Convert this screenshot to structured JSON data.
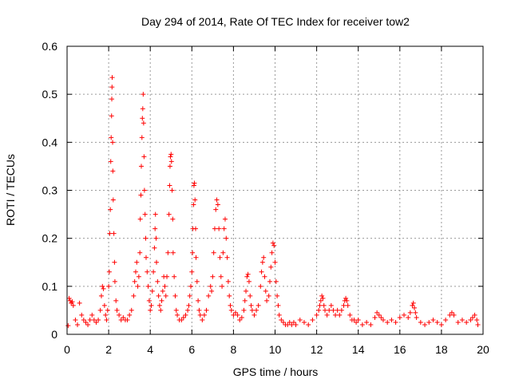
{
  "chart_data": {
    "type": "scatter",
    "title": "Day 294 of 2014, Rate Of TEC Index for receiver tow2",
    "xlabel": "GPS time / hours",
    "ylabel": "ROTI / TECUs",
    "xlim": [
      0,
      20
    ],
    "ylim": [
      0,
      0.6
    ],
    "x_ticks": [
      "0",
      "2",
      "4",
      "6",
      "8",
      "10",
      "12",
      "14",
      "16",
      "18",
      "20"
    ],
    "y_ticks": [
      "0",
      "0.1",
      "0.2",
      "0.3",
      "0.4",
      "0.5",
      "0.6"
    ],
    "grid": true,
    "marker": "+",
    "color": "#ff0000",
    "series": [
      {
        "points": [
          [
            0.05,
            0.018
          ],
          [
            0.1,
            0.075
          ],
          [
            0.15,
            0.07
          ],
          [
            0.2,
            0.065
          ],
          [
            0.25,
            0.068
          ],
          [
            0.3,
            0.06
          ],
          [
            0.4,
            0.03
          ],
          [
            0.5,
            0.02
          ],
          [
            0.6,
            0.065
          ],
          [
            0.7,
            0.04
          ],
          [
            0.8,
            0.03
          ],
          [
            0.9,
            0.025
          ],
          [
            1.0,
            0.02
          ],
          [
            1.1,
            0.03
          ],
          [
            1.2,
            0.04
          ],
          [
            1.3,
            0.03
          ],
          [
            1.4,
            0.025
          ],
          [
            1.5,
            0.03
          ],
          [
            1.6,
            0.05
          ],
          [
            1.65,
            0.08
          ],
          [
            1.7,
            0.1
          ],
          [
            1.75,
            0.095
          ],
          [
            1.8,
            0.06
          ],
          [
            1.85,
            0.04
          ],
          [
            1.9,
            0.03
          ],
          [
            1.95,
            0.05
          ],
          [
            2.0,
            0.1
          ],
          [
            2.03,
            0.13
          ],
          [
            2.05,
            0.21
          ],
          [
            2.08,
            0.26
          ],
          [
            2.1,
            0.36
          ],
          [
            2.12,
            0.41
          ],
          [
            2.14,
            0.455
          ],
          [
            2.15,
            0.49
          ],
          [
            2.16,
            0.515
          ],
          [
            2.17,
            0.535
          ],
          [
            2.19,
            0.4
          ],
          [
            2.2,
            0.34
          ],
          [
            2.22,
            0.28
          ],
          [
            2.25,
            0.21
          ],
          [
            2.28,
            0.15
          ],
          [
            2.3,
            0.11
          ],
          [
            2.35,
            0.07
          ],
          [
            2.4,
            0.05
          ],
          [
            2.5,
            0.04
          ],
          [
            2.6,
            0.03
          ],
          [
            2.7,
            0.035
          ],
          [
            2.8,
            0.03
          ],
          [
            2.9,
            0.03
          ],
          [
            3.0,
            0.04
          ],
          [
            3.1,
            0.05
          ],
          [
            3.2,
            0.08
          ],
          [
            3.25,
            0.11
          ],
          [
            3.3,
            0.13
          ],
          [
            3.35,
            0.15
          ],
          [
            3.4,
            0.1
          ],
          [
            3.45,
            0.12
          ],
          [
            3.5,
            0.17
          ],
          [
            3.52,
            0.24
          ],
          [
            3.55,
            0.29
          ],
          [
            3.57,
            0.35
          ],
          [
            3.6,
            0.41
          ],
          [
            3.62,
            0.45
          ],
          [
            3.64,
            0.47
          ],
          [
            3.66,
            0.5
          ],
          [
            3.68,
            0.44
          ],
          [
            3.7,
            0.37
          ],
          [
            3.72,
            0.3
          ],
          [
            3.75,
            0.25
          ],
          [
            3.78,
            0.2
          ],
          [
            3.8,
            0.16
          ],
          [
            3.85,
            0.13
          ],
          [
            3.9,
            0.1
          ],
          [
            3.95,
            0.07
          ],
          [
            4.0,
            0.05
          ],
          [
            4.05,
            0.06
          ],
          [
            4.1,
            0.09
          ],
          [
            4.15,
            0.13
          ],
          [
            4.2,
            0.18
          ],
          [
            4.23,
            0.22
          ],
          [
            4.25,
            0.25
          ],
          [
            4.28,
            0.2
          ],
          [
            4.3,
            0.15
          ],
          [
            4.35,
            0.11
          ],
          [
            4.4,
            0.08
          ],
          [
            4.45,
            0.06
          ],
          [
            4.5,
            0.05
          ],
          [
            4.55,
            0.07
          ],
          [
            4.6,
            0.09
          ],
          [
            4.65,
            0.12
          ],
          [
            4.7,
            0.1
          ],
          [
            4.75,
            0.08
          ],
          [
            4.8,
            0.12
          ],
          [
            4.85,
            0.17
          ],
          [
            4.9,
            0.25
          ],
          [
            4.93,
            0.31
          ],
          [
            4.95,
            0.35
          ],
          [
            4.97,
            0.37
          ],
          [
            5.0,
            0.375
          ],
          [
            5.02,
            0.36
          ],
          [
            5.05,
            0.3
          ],
          [
            5.08,
            0.24
          ],
          [
            5.1,
            0.17
          ],
          [
            5.15,
            0.12
          ],
          [
            5.2,
            0.08
          ],
          [
            5.25,
            0.05
          ],
          [
            5.3,
            0.04
          ],
          [
            5.4,
            0.03
          ],
          [
            5.5,
            0.03
          ],
          [
            5.6,
            0.035
          ],
          [
            5.7,
            0.04
          ],
          [
            5.8,
            0.05
          ],
          [
            5.85,
            0.06
          ],
          [
            5.9,
            0.08
          ],
          [
            5.95,
            0.1
          ],
          [
            6.0,
            0.13
          ],
          [
            6.03,
            0.17
          ],
          [
            6.05,
            0.22
          ],
          [
            6.08,
            0.27
          ],
          [
            6.1,
            0.31
          ],
          [
            6.12,
            0.315
          ],
          [
            6.15,
            0.28
          ],
          [
            6.18,
            0.22
          ],
          [
            6.2,
            0.16
          ],
          [
            6.25,
            0.11
          ],
          [
            6.3,
            0.07
          ],
          [
            6.35,
            0.05
          ],
          [
            6.4,
            0.04
          ],
          [
            6.5,
            0.03
          ],
          [
            6.6,
            0.04
          ],
          [
            6.7,
            0.05
          ],
          [
            6.8,
            0.08
          ],
          [
            6.9,
            0.1
          ],
          [
            6.95,
            0.09
          ],
          [
            7.0,
            0.12
          ],
          [
            7.05,
            0.17
          ],
          [
            7.1,
            0.22
          ],
          [
            7.15,
            0.26
          ],
          [
            7.2,
            0.28
          ],
          [
            7.25,
            0.27
          ],
          [
            7.3,
            0.22
          ],
          [
            7.35,
            0.16
          ],
          [
            7.4,
            0.12
          ],
          [
            7.45,
            0.1
          ],
          [
            7.5,
            0.17
          ],
          [
            7.55,
            0.22
          ],
          [
            7.6,
            0.24
          ],
          [
            7.65,
            0.2
          ],
          [
            7.7,
            0.16
          ],
          [
            7.75,
            0.11
          ],
          [
            7.8,
            0.08
          ],
          [
            7.85,
            0.06
          ],
          [
            7.9,
            0.05
          ],
          [
            8.0,
            0.04
          ],
          [
            8.1,
            0.045
          ],
          [
            8.2,
            0.04
          ],
          [
            8.3,
            0.03
          ],
          [
            8.4,
            0.035
          ],
          [
            8.5,
            0.05
          ],
          [
            8.55,
            0.07
          ],
          [
            8.6,
            0.09
          ],
          [
            8.65,
            0.12
          ],
          [
            8.7,
            0.125
          ],
          [
            8.75,
            0.11
          ],
          [
            8.8,
            0.08
          ],
          [
            8.85,
            0.06
          ],
          [
            8.9,
            0.05
          ],
          [
            9.0,
            0.04
          ],
          [
            9.1,
            0.05
          ],
          [
            9.2,
            0.06
          ],
          [
            9.3,
            0.1
          ],
          [
            9.35,
            0.13
          ],
          [
            9.4,
            0.15
          ],
          [
            9.45,
            0.16
          ],
          [
            9.5,
            0.12
          ],
          [
            9.55,
            0.09
          ],
          [
            9.6,
            0.07
          ],
          [
            9.7,
            0.08
          ],
          [
            9.75,
            0.11
          ],
          [
            9.8,
            0.14
          ],
          [
            9.85,
            0.17
          ],
          [
            9.9,
            0.19
          ],
          [
            9.95,
            0.185
          ],
          [
            10.0,
            0.15
          ],
          [
            10.05,
            0.11
          ],
          [
            10.1,
            0.08
          ],
          [
            10.15,
            0.06
          ],
          [
            10.2,
            0.04
          ],
          [
            10.3,
            0.03
          ],
          [
            10.4,
            0.025
          ],
          [
            10.5,
            0.02
          ],
          [
            10.6,
            0.02
          ],
          [
            10.7,
            0.025
          ],
          [
            10.8,
            0.02
          ],
          [
            10.9,
            0.025
          ],
          [
            11.0,
            0.02
          ],
          [
            11.2,
            0.03
          ],
          [
            11.4,
            0.025
          ],
          [
            11.6,
            0.02
          ],
          [
            11.8,
            0.03
          ],
          [
            12.0,
            0.04
          ],
          [
            12.1,
            0.05
          ],
          [
            12.15,
            0.06
          ],
          [
            12.2,
            0.07
          ],
          [
            12.25,
            0.08
          ],
          [
            12.3,
            0.075
          ],
          [
            12.35,
            0.06
          ],
          [
            12.4,
            0.05
          ],
          [
            12.5,
            0.04
          ],
          [
            12.6,
            0.05
          ],
          [
            12.7,
            0.06
          ],
          [
            12.8,
            0.05
          ],
          [
            12.9,
            0.04
          ],
          [
            13.0,
            0.05
          ],
          [
            13.1,
            0.04
          ],
          [
            13.2,
            0.05
          ],
          [
            13.3,
            0.06
          ],
          [
            13.35,
            0.07
          ],
          [
            13.4,
            0.075
          ],
          [
            13.45,
            0.07
          ],
          [
            13.5,
            0.06
          ],
          [
            13.6,
            0.04
          ],
          [
            13.7,
            0.03
          ],
          [
            13.8,
            0.03
          ],
          [
            13.9,
            0.025
          ],
          [
            14.0,
            0.03
          ],
          [
            14.2,
            0.02
          ],
          [
            14.4,
            0.025
          ],
          [
            14.6,
            0.02
          ],
          [
            14.8,
            0.035
          ],
          [
            14.9,
            0.045
          ],
          [
            15.0,
            0.04
          ],
          [
            15.1,
            0.035
          ],
          [
            15.2,
            0.03
          ],
          [
            15.4,
            0.025
          ],
          [
            15.6,
            0.03
          ],
          [
            15.8,
            0.025
          ],
          [
            16.0,
            0.035
          ],
          [
            16.2,
            0.04
          ],
          [
            16.4,
            0.035
          ],
          [
            16.5,
            0.045
          ],
          [
            16.6,
            0.06
          ],
          [
            16.65,
            0.065
          ],
          [
            16.7,
            0.055
          ],
          [
            16.75,
            0.045
          ],
          [
            16.8,
            0.035
          ],
          [
            17.0,
            0.025
          ],
          [
            17.2,
            0.02
          ],
          [
            17.4,
            0.025
          ],
          [
            17.6,
            0.03
          ],
          [
            17.8,
            0.025
          ],
          [
            18.0,
            0.02
          ],
          [
            18.2,
            0.03
          ],
          [
            18.4,
            0.04
          ],
          [
            18.5,
            0.045
          ],
          [
            18.6,
            0.04
          ],
          [
            18.8,
            0.025
          ],
          [
            19.0,
            0.03
          ],
          [
            19.2,
            0.025
          ],
          [
            19.4,
            0.03
          ],
          [
            19.5,
            0.035
          ],
          [
            19.6,
            0.04
          ],
          [
            19.7,
            0.03
          ],
          [
            19.75,
            0.02
          ]
        ]
      }
    ]
  }
}
